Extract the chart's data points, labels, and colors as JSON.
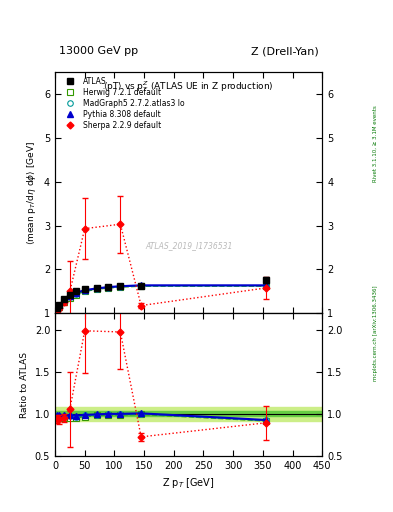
{
  "title_left": "13000 GeV pp",
  "title_right": "Z (Drell-Yan)",
  "main_title": "<pT> vs p$_T^Z$ (ATLAS UE in Z production)",
  "watermark": "ATLAS_2019_I1736531",
  "right_label_top": "Rivet 3.1.10, ≥ 3.1M events",
  "right_label_bottom": "mcplots.cern.ch [arXiv:1306.3436]",
  "atlas_x": [
    2.5,
    7.5,
    15,
    25,
    35,
    50,
    70,
    90,
    110,
    145,
    355
  ],
  "atlas_y": [
    1.12,
    1.2,
    1.32,
    1.42,
    1.5,
    1.55,
    1.58,
    1.6,
    1.62,
    1.63,
    1.77
  ],
  "atlas_yerr": [
    0.04,
    0.04,
    0.04,
    0.04,
    0.04,
    0.04,
    0.04,
    0.04,
    0.04,
    0.04,
    0.07
  ],
  "herwig_x": [
    2.5,
    7.5,
    15,
    25,
    35,
    50,
    70,
    90,
    110,
    145,
    355
  ],
  "herwig_y": [
    1.08,
    1.15,
    1.26,
    1.35,
    1.43,
    1.5,
    1.55,
    1.58,
    1.6,
    1.62,
    1.62
  ],
  "madgraph_x": [
    2.5,
    7.5,
    15,
    25,
    35,
    50,
    70,
    90,
    110,
    145,
    355
  ],
  "madgraph_y": [
    1.08,
    1.17,
    1.28,
    1.38,
    1.45,
    1.52,
    1.56,
    1.59,
    1.61,
    1.63,
    1.63
  ],
  "pythia_x": [
    2.5,
    7.5,
    15,
    25,
    35,
    50,
    70,
    90,
    110,
    145,
    355
  ],
  "pythia_y": [
    1.1,
    1.18,
    1.3,
    1.4,
    1.47,
    1.53,
    1.57,
    1.6,
    1.62,
    1.64,
    1.64
  ],
  "sherpa_x": [
    2.5,
    7.5,
    15,
    25,
    50,
    110,
    145,
    355
  ],
  "sherpa_y": [
    1.05,
    1.12,
    1.25,
    1.5,
    2.93,
    3.03,
    1.18,
    1.58
  ],
  "sherpa_yerr_up": [
    0.05,
    0.05,
    0.05,
    0.7,
    0.7,
    0.65,
    0.05,
    0.25
  ],
  "sherpa_yerr_dn": [
    0.05,
    0.05,
    0.05,
    0.7,
    0.7,
    0.65,
    0.05,
    0.25
  ],
  "herwig_ratio": [
    0.96,
    0.96,
    0.955,
    0.951,
    0.953,
    0.968,
    0.981,
    0.988,
    0.988,
    0.994,
    0.915
  ],
  "madgraph_ratio": [
    0.964,
    0.975,
    0.97,
    0.972,
    0.967,
    0.981,
    0.987,
    0.994,
    0.994,
    1.0,
    0.921
  ],
  "pythia_ratio": [
    0.982,
    0.983,
    0.985,
    0.986,
    0.98,
    0.987,
    0.994,
    1.0,
    1.0,
    1.006,
    0.927
  ],
  "sherpa_ratio": [
    0.938,
    0.933,
    0.947,
    1.056,
    1.993,
    1.979,
    0.725,
    0.893
  ],
  "sherpa_ratio_yerr_up": [
    0.05,
    0.05,
    0.05,
    0.45,
    0.5,
    0.44,
    0.05,
    0.2
  ],
  "sherpa_ratio_yerr_dn": [
    0.05,
    0.05,
    0.05,
    0.45,
    0.5,
    0.44,
    0.05,
    0.2
  ],
  "atlas_band_low": 0.97,
  "atlas_band_high": 1.03,
  "atlas_band_color_inner": "#66cc44",
  "atlas_band_color_outer": "#ccee88",
  "color_atlas": "#000000",
  "color_herwig": "#339900",
  "color_madgraph": "#009999",
  "color_pythia": "#0000cc",
  "color_sherpa": "#ff0000",
  "ylim_main": [
    1.0,
    6.5
  ],
  "ylim_ratio": [
    0.5,
    2.2
  ],
  "xlim": [
    0,
    450
  ],
  "yticks_main": [
    1,
    2,
    3,
    4,
    5,
    6
  ],
  "yticks_ratio": [
    0.5,
    1.0,
    1.5,
    2.0
  ]
}
